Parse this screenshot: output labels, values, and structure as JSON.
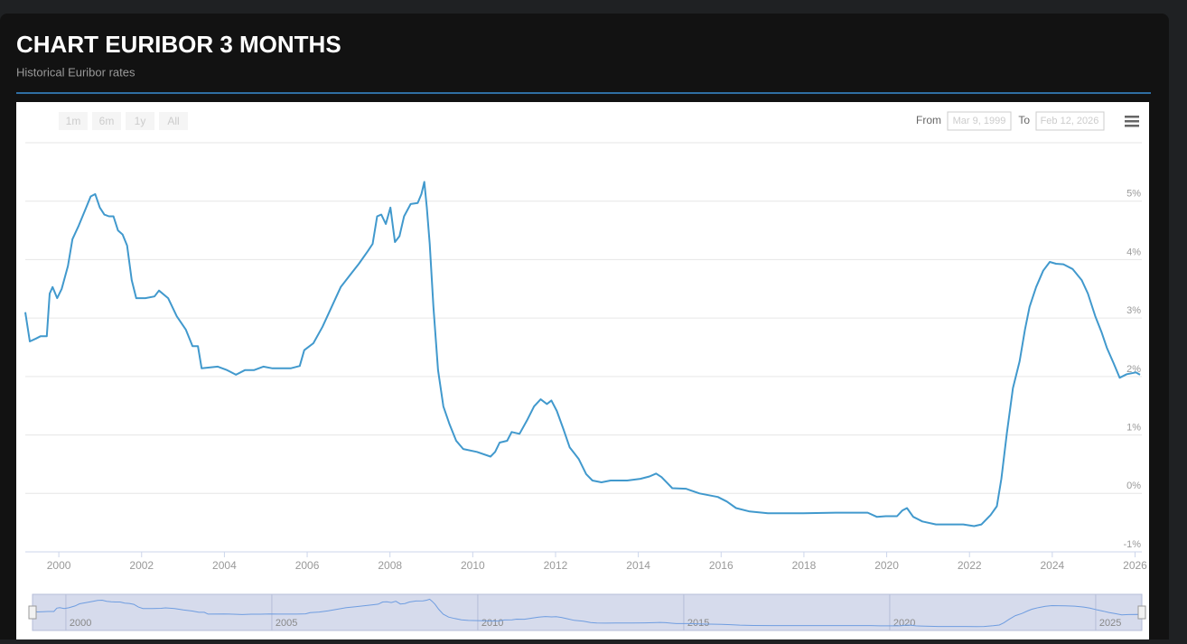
{
  "header": {
    "title": "CHART EURIBOR 3 MONTHS",
    "subtitle": "Historical Euribor rates"
  },
  "toolbar": {
    "range_buttons": [
      "1m",
      "6m",
      "1y",
      "All"
    ],
    "from_label": "From",
    "from_value": "Mar 9, 1999",
    "to_label": "To",
    "to_value": "Feb 12, 2026"
  },
  "chart_data": {
    "type": "line",
    "x": [
      1999.19,
      1999.3,
      1999.45,
      1999.56,
      1999.71,
      1999.78,
      1999.85,
      1999.96,
      2000.07,
      2000.22,
      2000.33,
      2000.48,
      2000.66,
      2000.77,
      2000.88,
      2000.99,
      2001.1,
      2001.21,
      2001.32,
      2001.43,
      2001.54,
      2001.65,
      2001.76,
      2001.87,
      2002.09,
      2002.31,
      2002.42,
      2002.64,
      2002.85,
      2003.07,
      2003.23,
      2003.36,
      2003.45,
      2003.84,
      2004.06,
      2004.28,
      2004.5,
      2004.72,
      2004.94,
      2005.16,
      2005.38,
      2005.6,
      2005.82,
      2005.93,
      2006.15,
      2006.37,
      2006.59,
      2006.81,
      2007.03,
      2007.25,
      2007.47,
      2007.58,
      2007.69,
      2007.79,
      2007.9,
      2008.01,
      2008.12,
      2008.23,
      2008.34,
      2008.5,
      2008.67,
      2008.76,
      2008.83,
      2008.89,
      2008.96,
      2009.05,
      2009.16,
      2009.29,
      2009.44,
      2009.6,
      2009.77,
      2010.1,
      2010.43,
      2010.54,
      2010.65,
      2010.83,
      2010.94,
      2011.13,
      2011.31,
      2011.48,
      2011.64,
      2011.79,
      2011.9,
      2012.03,
      2012.19,
      2012.34,
      2012.56,
      2012.74,
      2012.89,
      2013.11,
      2013.33,
      2013.73,
      2014.05,
      2014.27,
      2014.43,
      2014.56,
      2014.71,
      2014.82,
      2015.15,
      2015.48,
      2015.92,
      2016.14,
      2016.36,
      2016.69,
      2017.13,
      2017.9,
      2018.77,
      2019.54,
      2019.76,
      2019.98,
      2020.25,
      2020.38,
      2020.49,
      2020.64,
      2020.86,
      2021.19,
      2021.52,
      2021.85,
      2022.11,
      2022.29,
      2022.51,
      2022.66,
      2022.77,
      2022.9,
      2023.05,
      2023.21,
      2023.34,
      2023.45,
      2023.61,
      2023.78,
      2023.94,
      2024.09,
      2024.27,
      2024.49,
      2024.71,
      2024.86,
      2025.04,
      2025.19,
      2025.32,
      2025.48,
      2025.63,
      2025.8,
      2026.02,
      2026.12
    ],
    "series": [
      {
        "name": "Euribor 3 months",
        "color": "#4199cd",
        "values": [
          3.1,
          2.6,
          2.65,
          2.69,
          2.69,
          3.42,
          3.53,
          3.34,
          3.5,
          3.89,
          4.35,
          4.58,
          4.89,
          5.08,
          5.12,
          4.89,
          4.77,
          4.74,
          4.74,
          4.5,
          4.43,
          4.24,
          3.65,
          3.34,
          3.34,
          3.37,
          3.47,
          3.34,
          3.03,
          2.8,
          2.52,
          2.52,
          2.14,
          2.17,
          2.11,
          2.03,
          2.11,
          2.11,
          2.17,
          2.14,
          2.14,
          2.14,
          2.18,
          2.45,
          2.57,
          2.85,
          3.19,
          3.53,
          3.73,
          3.93,
          4.15,
          4.27,
          4.74,
          4.77,
          4.61,
          4.89,
          4.3,
          4.4,
          4.74,
          4.95,
          4.97,
          5.12,
          5.33,
          4.89,
          4.27,
          3.19,
          2.11,
          1.49,
          1.18,
          0.9,
          0.76,
          0.71,
          0.63,
          0.71,
          0.87,
          0.9,
          1.05,
          1.02,
          1.25,
          1.49,
          1.61,
          1.53,
          1.59,
          1.41,
          1.1,
          0.79,
          0.59,
          0.33,
          0.22,
          0.19,
          0.22,
          0.22,
          0.25,
          0.29,
          0.34,
          0.28,
          0.17,
          0.09,
          0.08,
          0,
          -0.06,
          -0.14,
          -0.25,
          -0.31,
          -0.34,
          -0.34,
          -0.33,
          -0.33,
          -0.4,
          -0.39,
          -0.39,
          -0.29,
          -0.25,
          -0.4,
          -0.48,
          -0.53,
          -0.53,
          -0.53,
          -0.56,
          -0.53,
          -0.37,
          -0.22,
          0.25,
          1.02,
          1.8,
          2.26,
          2.8,
          3.19,
          3.53,
          3.81,
          3.96,
          3.93,
          3.92,
          3.84,
          3.65,
          3.42,
          3.03,
          2.76,
          2.49,
          2.23,
          1.98,
          2.04,
          2.07,
          2.03
        ]
      }
    ],
    "xlim": [
      1999.19,
      2026.12
    ],
    "xticks": [
      2000,
      2002,
      2004,
      2006,
      2008,
      2010,
      2012,
      2014,
      2016,
      2018,
      2020,
      2022,
      2024,
      2026
    ],
    "ylim": [
      -1,
      6
    ],
    "yticks": [
      {
        "value": -1,
        "label": "-1%"
      },
      {
        "value": 0,
        "label": "0%"
      },
      {
        "value": 1,
        "label": "1%"
      },
      {
        "value": 2,
        "label": "2%"
      },
      {
        "value": 3,
        "label": "3%"
      },
      {
        "value": 4,
        "label": "4%"
      },
      {
        "value": 5,
        "label": "5%"
      }
    ],
    "grid": true,
    "navigator_xticks": [
      2000,
      2005,
      2010,
      2015,
      2020,
      2025
    ]
  }
}
